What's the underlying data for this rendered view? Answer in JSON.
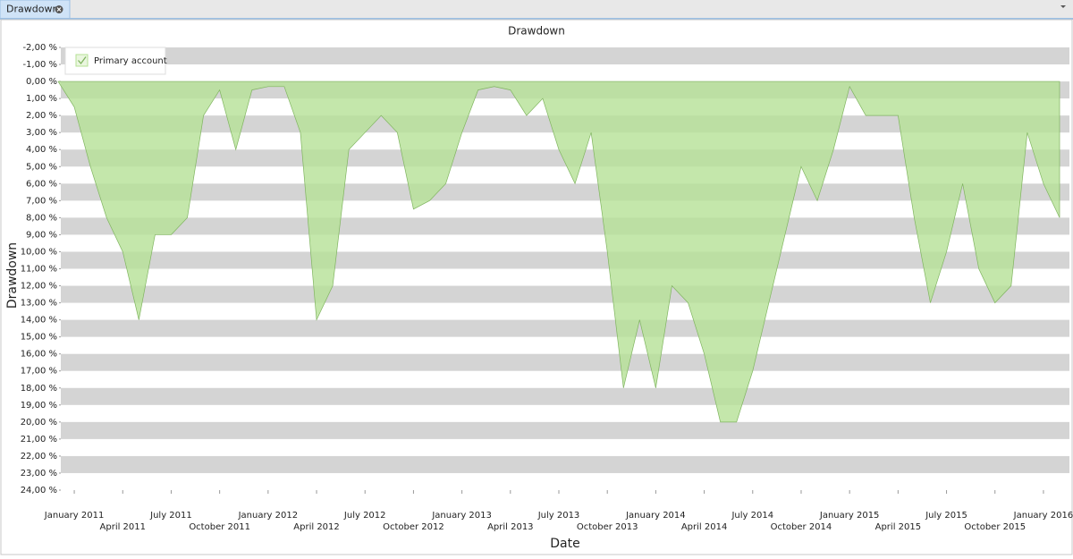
{
  "tab": {
    "title": "Drawdown"
  },
  "chart_data": {
    "type": "area",
    "title": "Drawdown",
    "y_label": "Drawdown",
    "x_label": "Date",
    "x": [
      "2010-12",
      "2011-01",
      "2011-02",
      "2011-03",
      "2011-04",
      "2011-05",
      "2011-06",
      "2011-07",
      "2011-08",
      "2011-09",
      "2011-10",
      "2011-11",
      "2011-12",
      "2012-01",
      "2012-02",
      "2012-03",
      "2012-04",
      "2012-05",
      "2012-06",
      "2012-07",
      "2012-08",
      "2012-09",
      "2012-10",
      "2012-11",
      "2012-12",
      "2013-01",
      "2013-02",
      "2013-03",
      "2013-04",
      "2013-05",
      "2013-06",
      "2013-07",
      "2013-08",
      "2013-09",
      "2013-10",
      "2013-11",
      "2013-12",
      "2014-01",
      "2014-02",
      "2014-03",
      "2014-04",
      "2014-05",
      "2014-06",
      "2014-07",
      "2014-08",
      "2014-09",
      "2014-10",
      "2014-11",
      "2014-12",
      "2015-01",
      "2015-02",
      "2015-03",
      "2015-04",
      "2015-05",
      "2015-06",
      "2015-07",
      "2015-08",
      "2015-09",
      "2015-10",
      "2015-11",
      "2015-12",
      "2016-01",
      "2016-02"
    ],
    "series": [
      {
        "name": "Primary account",
        "color": "#b5e196",
        "line_color": "#7fb45f",
        "values": [
          0,
          1.5,
          5,
          8,
          10,
          14,
          9,
          9,
          8,
          2,
          0.5,
          4,
          0.5,
          0.3,
          0.3,
          3,
          14,
          12,
          4,
          3,
          2,
          3,
          7.5,
          7,
          6,
          3,
          0.5,
          0.3,
          0.5,
          2,
          1,
          4,
          6,
          3,
          10,
          18,
          14,
          18,
          12,
          13,
          16,
          20,
          20,
          17,
          13,
          9,
          5,
          7,
          4,
          0.3,
          2,
          2,
          2,
          8,
          13,
          10,
          6,
          11,
          13,
          12,
          3,
          6,
          8
        ]
      }
    ],
    "xlim": [
      "2010-12",
      "2016-02"
    ],
    "xticks": [
      {
        "value": "2011-01",
        "label": "January 2011"
      },
      {
        "value": "2011-04",
        "label": "April 2011"
      },
      {
        "value": "2011-07",
        "label": "July 2011"
      },
      {
        "value": "2011-10",
        "label": "October 2011"
      },
      {
        "value": "2012-01",
        "label": "January 2012"
      },
      {
        "value": "2012-04",
        "label": "April 2012"
      },
      {
        "value": "2012-07",
        "label": "July 2012"
      },
      {
        "value": "2012-10",
        "label": "October 2012"
      },
      {
        "value": "2013-01",
        "label": "January 2013"
      },
      {
        "value": "2013-04",
        "label": "April 2013"
      },
      {
        "value": "2013-07",
        "label": "July 2013"
      },
      {
        "value": "2013-10",
        "label": "October 2013"
      },
      {
        "value": "2014-01",
        "label": "January 2014"
      },
      {
        "value": "2014-04",
        "label": "April 2014"
      },
      {
        "value": "2014-07",
        "label": "July 2014"
      },
      {
        "value": "2014-10",
        "label": "October 2014"
      },
      {
        "value": "2015-01",
        "label": "January 2015"
      },
      {
        "value": "2015-04",
        "label": "April 2015"
      },
      {
        "value": "2015-07",
        "label": "July 2015"
      },
      {
        "value": "2015-10",
        "label": "October 2015"
      },
      {
        "value": "2016-01",
        "label": "January 2016"
      }
    ],
    "ylim": [
      -2,
      24
    ],
    "y_inverted": true,
    "yticks": [
      {
        "value": -2,
        "label": "-2,00 %"
      },
      {
        "value": -1,
        "label": "-1,00 %"
      },
      {
        "value": 0,
        "label": "0,00 %"
      },
      {
        "value": 1,
        "label": "1,00 %"
      },
      {
        "value": 2,
        "label": "2,00 %"
      },
      {
        "value": 3,
        "label": "3,00 %"
      },
      {
        "value": 4,
        "label": "4,00 %"
      },
      {
        "value": 5,
        "label": "5,00 %"
      },
      {
        "value": 6,
        "label": "6,00 %"
      },
      {
        "value": 7,
        "label": "7,00 %"
      },
      {
        "value": 8,
        "label": "8,00 %"
      },
      {
        "value": 9,
        "label": "9,00 %"
      },
      {
        "value": 10,
        "label": "10,00 %"
      },
      {
        "value": 11,
        "label": "11,00 %"
      },
      {
        "value": 12,
        "label": "12,00 %"
      },
      {
        "value": 13,
        "label": "13,00 %"
      },
      {
        "value": 14,
        "label": "14,00 %"
      },
      {
        "value": 15,
        "label": "15,00 %"
      },
      {
        "value": 16,
        "label": "16,00 %"
      },
      {
        "value": 17,
        "label": "17,00 %"
      },
      {
        "value": 18,
        "label": "18,00 %"
      },
      {
        "value": 19,
        "label": "19,00 %"
      },
      {
        "value": 20,
        "label": "20,00 %"
      },
      {
        "value": 21,
        "label": "21,00 %"
      },
      {
        "value": 22,
        "label": "22,00 %"
      },
      {
        "value": 23,
        "label": "23,00 %"
      },
      {
        "value": 24,
        "label": "24,00 %"
      }
    ],
    "grid": "bands",
    "legend": "upper left"
  }
}
